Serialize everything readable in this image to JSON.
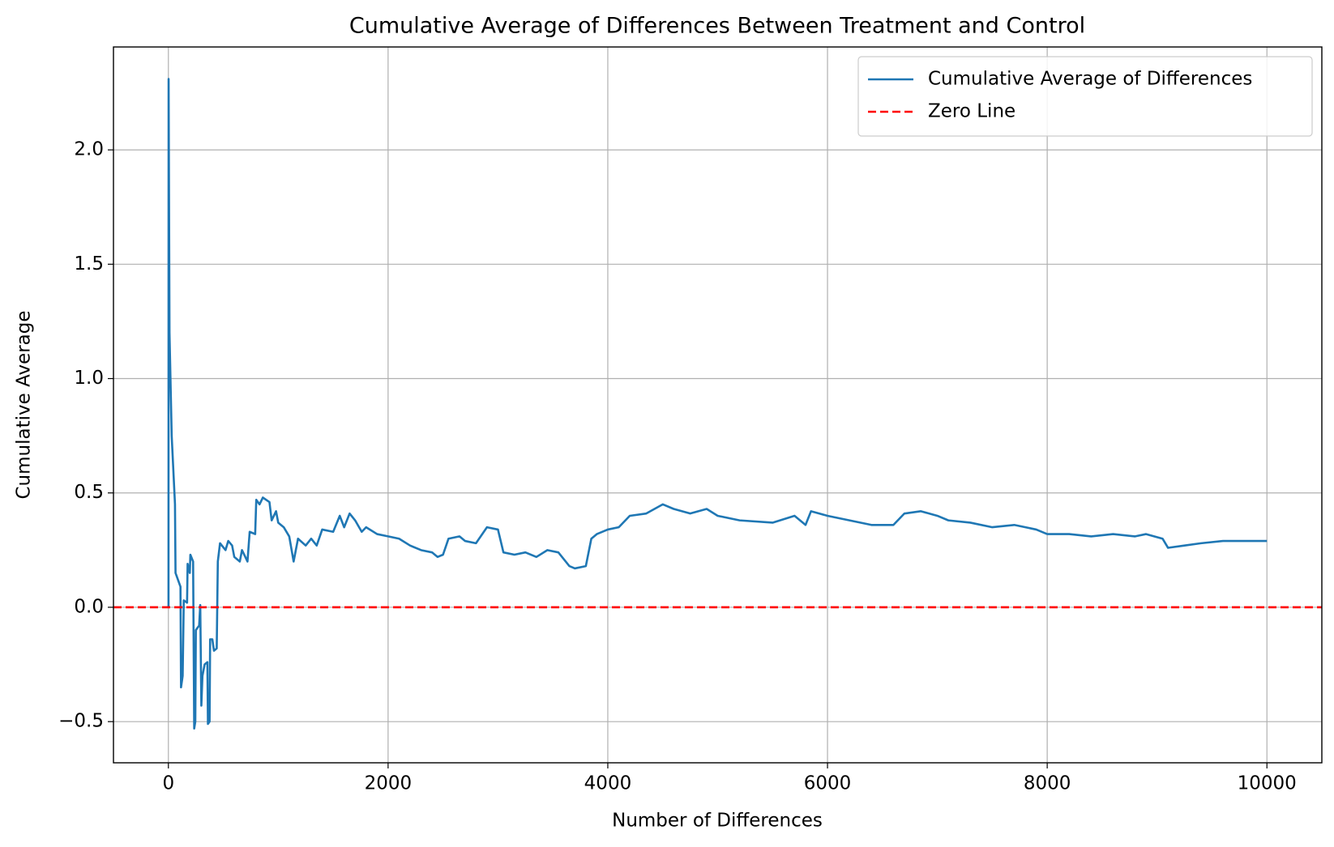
{
  "chart_data": {
    "type": "line",
    "title": "Cumulative Average of Differences Between Treatment and Control",
    "x_label": "Number of Differences",
    "y_label": "Cumulative Average",
    "xlim": [
      -500,
      10500
    ],
    "ylim": [
      -0.68,
      2.45
    ],
    "xticks": [
      0,
      2000,
      4000,
      6000,
      8000,
      10000
    ],
    "yticks": [
      {
        "value": -0.5,
        "label": "−0.5"
      },
      {
        "value": 0,
        "label": "0.0"
      },
      {
        "value": 0.5,
        "label": "0.5"
      },
      {
        "value": 1,
        "label": "1.0"
      },
      {
        "value": 1.5,
        "label": "1.5"
      },
      {
        "value": 2,
        "label": "2.0"
      }
    ],
    "grid": true,
    "legend": "upper right",
    "series": [
      {
        "name": "Cumulative Average of Differences",
        "color": "#1f77b4",
        "x": [
          1,
          2,
          10,
          30,
          60,
          65,
          110,
          115,
          130,
          140,
          170,
          175,
          195,
          200,
          225,
          235,
          245,
          250,
          280,
          290,
          300,
          310,
          330,
          355,
          360,
          375,
          380,
          400,
          415,
          440,
          450,
          470,
          520,
          545,
          580,
          600,
          650,
          670,
          720,
          740,
          790,
          800,
          830,
          860,
          920,
          940,
          980,
          1000,
          1050,
          1100,
          1140,
          1180,
          1250,
          1300,
          1350,
          1400,
          1500,
          1560,
          1600,
          1650,
          1700,
          1760,
          1800,
          1900,
          2000,
          2100,
          2200,
          2300,
          2400,
          2450,
          2500,
          2550,
          2650,
          2700,
          2800,
          2900,
          3000,
          3050,
          3150,
          3250,
          3350,
          3450,
          3550,
          3650,
          3700,
          3800,
          3850,
          3900,
          4000,
          4100,
          4200,
          4350,
          4500,
          4600,
          4750,
          4900,
          5000,
          5200,
          5500,
          5700,
          5800,
          5850,
          6000,
          6200,
          6400,
          6600,
          6700,
          6850,
          7000,
          7100,
          7300,
          7500,
          7700,
          7900,
          8000,
          8200,
          8400,
          8600,
          8800,
          8900,
          9050,
          9100,
          9250,
          9400,
          9600,
          9800,
          10000
        ],
        "values": [
          0.0,
          2.31,
          1.2,
          0.75,
          0.45,
          0.15,
          0.09,
          -0.35,
          -0.3,
          0.03,
          0.02,
          0.19,
          0.15,
          0.23,
          0.2,
          -0.53,
          -0.5,
          -0.1,
          -0.08,
          0.01,
          -0.43,
          -0.3,
          -0.25,
          -0.24,
          -0.51,
          -0.5,
          -0.14,
          -0.14,
          -0.19,
          -0.18,
          0.2,
          0.28,
          0.25,
          0.29,
          0.27,
          0.22,
          0.2,
          0.25,
          0.2,
          0.33,
          0.32,
          0.47,
          0.45,
          0.48,
          0.46,
          0.38,
          0.42,
          0.37,
          0.35,
          0.31,
          0.2,
          0.3,
          0.27,
          0.3,
          0.27,
          0.34,
          0.33,
          0.4,
          0.35,
          0.41,
          0.38,
          0.33,
          0.35,
          0.32,
          0.31,
          0.3,
          0.27,
          0.25,
          0.24,
          0.22,
          0.23,
          0.3,
          0.31,
          0.29,
          0.28,
          0.35,
          0.34,
          0.24,
          0.23,
          0.24,
          0.22,
          0.25,
          0.24,
          0.18,
          0.17,
          0.18,
          0.3,
          0.32,
          0.34,
          0.35,
          0.4,
          0.41,
          0.45,
          0.43,
          0.41,
          0.43,
          0.4,
          0.38,
          0.37,
          0.4,
          0.36,
          0.42,
          0.4,
          0.38,
          0.36,
          0.36,
          0.41,
          0.42,
          0.4,
          0.38,
          0.37,
          0.35,
          0.36,
          0.34,
          0.32,
          0.32,
          0.31,
          0.32,
          0.31,
          0.32,
          0.3,
          0.26,
          0.27,
          0.28,
          0.29,
          0.29,
          0.29
        ]
      }
    ],
    "hlines": [
      {
        "name": "Zero Line",
        "color": "#ff0000",
        "value": 0
      }
    ]
  }
}
